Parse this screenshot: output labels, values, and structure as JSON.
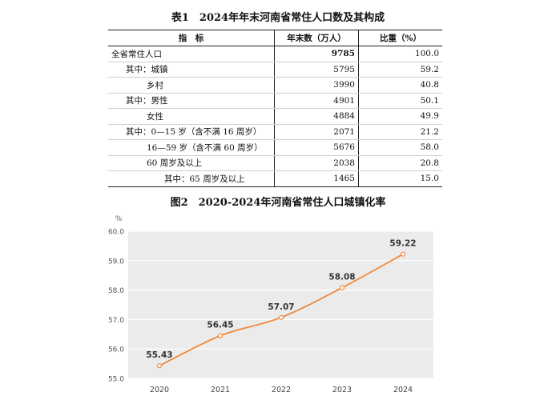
{
  "table": {
    "title": "表1　2024年年末河南省常住人口数及其构成",
    "headers": [
      "指　标",
      "年末数（万人）",
      "比重（%）"
    ],
    "rows": [
      {
        "label": "全省常住人口",
        "value": "9785",
        "share": "100.0",
        "indent": 0,
        "bold": true
      },
      {
        "label": "其中：城镇",
        "value": "5795",
        "share": "59.2",
        "indent": 1
      },
      {
        "label": "乡村",
        "value": "3990",
        "share": "40.8",
        "indent": 2
      },
      {
        "label": "其中：男性",
        "value": "4901",
        "share": "50.1",
        "indent": 1
      },
      {
        "label": "女性",
        "value": "4884",
        "share": "49.9",
        "indent": 2
      },
      {
        "label": "其中：0—15 岁（含不满 16 周岁）",
        "value": "2071",
        "share": "21.2",
        "indent": 1
      },
      {
        "label": "16—59 岁（含不满 60 周岁）",
        "value": "5676",
        "share": "58.0",
        "indent": 2
      },
      {
        "label": "60 周岁及以上",
        "value": "2038",
        "share": "20.8",
        "indent": 2
      },
      {
        "label": "其中：65 周岁及以上",
        "value": "1465",
        "share": "15.0",
        "indent": 3
      }
    ]
  },
  "chart_data": {
    "type": "line",
    "title": "图2　2020-2024年河南省常住人口城镇化率",
    "ylabel": "%",
    "xlabel": "",
    "x": [
      "2020",
      "2021",
      "2022",
      "2023",
      "2024"
    ],
    "series": [
      {
        "values": [
          55.43,
          56.45,
          57.07,
          58.08,
          59.22
        ]
      }
    ],
    "data_labels": [
      "55.43",
      "56.45",
      "57.07",
      "58.08",
      "59.22"
    ],
    "ylim": [
      55.0,
      60.0
    ],
    "yticks": [
      "55.0",
      "56.0",
      "57.0",
      "58.0",
      "59.0",
      "60.0"
    ],
    "grid": true,
    "line_color": "#f0883a",
    "plot_background": "#ebebeb"
  }
}
